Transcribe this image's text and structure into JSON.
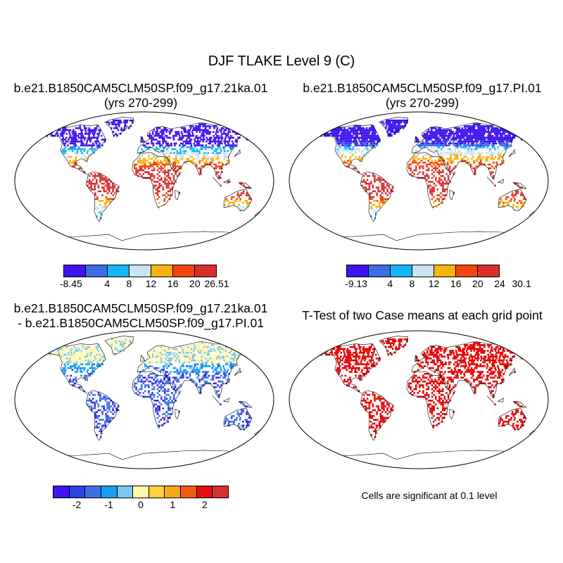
{
  "title": "DJF TLAKE Level 9 (C)",
  "panels": {
    "case1": {
      "line1": "b.e21.B1850CAM5CLM50SP.f09_g17.21ka.01",
      "line2": "(yrs 270-299)"
    },
    "case2": {
      "line1": "b.e21.B1850CAM5CLM50SP.f09_g17.PI.01",
      "line2": "(yrs 270-299)"
    },
    "diff": {
      "line1": "b.e21.B1850CAM5CLM50SP.f09_g17.21ka.01",
      "line2": "- b.e21.B1850CAM5CLM50SP.f09_g17.PI.01"
    },
    "ttest": {
      "line1": "T-Test of two Case means at each grid point"
    }
  },
  "legends": {
    "case1": {
      "colors": [
        "#3f14ee",
        "#3d6ee6",
        "#17b6f5",
        "#cbe5f0",
        "#f9b20f",
        "#f24410",
        "#d92d2d"
      ],
      "labels": [
        "-8.45",
        "4",
        "8",
        "12",
        "16",
        "20",
        "26.51"
      ]
    },
    "case2": {
      "colors": [
        "#3f14ee",
        "#3d6ee6",
        "#17b6f5",
        "#cbe5f0",
        "#f9b20f",
        "#f24410",
        "#d92d2d"
      ],
      "labels": [
        "-9.13",
        "4",
        "8",
        "12",
        "16",
        "20",
        "24",
        "30.1"
      ]
    },
    "diff": {
      "colors": [
        "#3f14ee",
        "#2b43e0",
        "#3b6fe8",
        "#1b9ef2",
        "#7cc6ef",
        "#fff7a8",
        "#ffd03a",
        "#f7a816",
        "#f25a10",
        "#e50f0f",
        "#d42f33"
      ],
      "labels": [
        "-2",
        "-1",
        "0",
        "1",
        "2"
      ]
    }
  },
  "note": "Cells are significant at 0.1 level",
  "map_colors": {
    "significant": "#e60000",
    "outline": "#000000"
  }
}
